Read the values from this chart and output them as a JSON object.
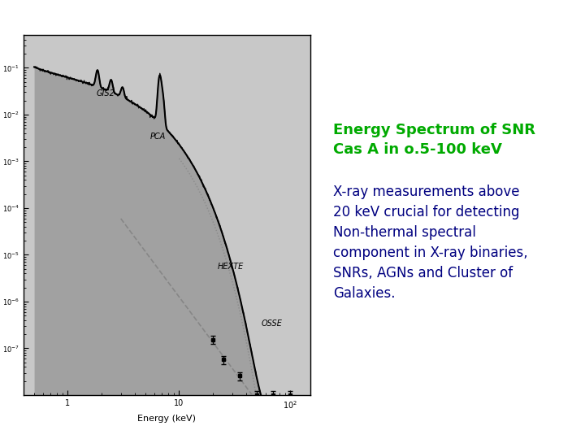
{
  "background_color": "#ffffff",
  "plot_bg_color": "#c8c8c8",
  "title_text": "Energy Spectrum of SNR\nCas A in o.5-100 keV",
  "title_color": "#00aa00",
  "title_fontsize": 13,
  "body_text": "X-ray measurements above\n20 keV crucial for detecting\nNon-thermal spectral\ncomponent in X-ray binaries,\nSNRs, AGNs and Cluster of\nGalaxies.",
  "body_color": "#000080",
  "body_fontsize": 12,
  "xlim": [
    0.4,
    150
  ],
  "ylim": [
    1e-08,
    0.5
  ]
}
